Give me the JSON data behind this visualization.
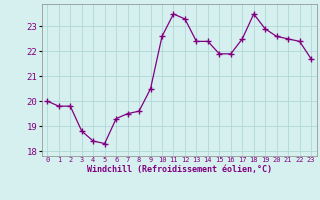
{
  "hours": [
    0,
    1,
    2,
    3,
    4,
    5,
    6,
    7,
    8,
    9,
    10,
    11,
    12,
    13,
    14,
    15,
    16,
    17,
    18,
    19,
    20,
    21,
    22,
    23
  ],
  "values": [
    20.0,
    19.8,
    19.8,
    18.8,
    18.4,
    18.3,
    19.3,
    19.5,
    19.6,
    20.5,
    22.6,
    23.5,
    23.3,
    22.4,
    22.4,
    21.9,
    21.9,
    22.5,
    23.5,
    22.9,
    22.6,
    22.5,
    22.4,
    21.7
  ],
  "line_color": "#800080",
  "marker": "+",
  "marker_size": 4,
  "markeredgewidth": 1.0,
  "linewidth": 0.9,
  "bg_color": "#d6f0f0",
  "grid_color": "#b0d8d8",
  "axis_label_color": "#800080",
  "tick_label_color": "#800080",
  "xlabel": "Windchill (Refroidissement éolien,°C)",
  "ylim": [
    17.8,
    23.9
  ],
  "yticks": [
    18,
    19,
    20,
    21,
    22,
    23
  ],
  "xlim": [
    -0.5,
    23.5
  ]
}
